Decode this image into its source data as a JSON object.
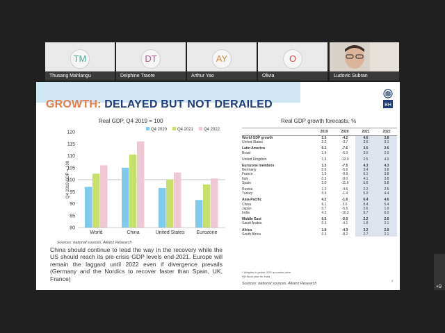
{
  "participants": [
    {
      "initials": "TM",
      "name": "Thusang Mahlangu",
      "color": "#4aa89a"
    },
    {
      "initials": "DT",
      "name": "Delphine Traore",
      "color": "#b0558f"
    },
    {
      "initials": "AY",
      "name": "Arthur Yao",
      "color": "#d4873a"
    },
    {
      "initials": "O",
      "name": "Olivia",
      "color": "#d0533f"
    }
  ],
  "video_participant": {
    "name": "Ludovic Subran"
  },
  "more_participants": "+9",
  "slide": {
    "title_part1": "GROWTH:",
    "title_part2": "DELAYED BUT NOT DERAILED",
    "logo_text": "BH",
    "body": "China should continue to lead the way in the recovery while the US should reach its pre-crisis GDP levels end-2021. Europe will remain the laggard until 2022 even if divergence prevails (Germany and the Nordics to recover faster than Spain, UK, France)",
    "left_source": "Sources: national sources, Allianz Research",
    "right_source": "Sources: national sources, Allianz Research",
    "footnote1": "* Weights in global GDP at market price",
    "footnote2": "NB fiscal year for India",
    "page_number": "3"
  },
  "chart_data": {
    "type": "bar",
    "title": "Real GDP, Q4 2019 = 100",
    "ylabel": "Q4 2019 GDP = 100",
    "categories": [
      "World",
      "China",
      "United States",
      "Eurozone"
    ],
    "series": [
      {
        "name": "Q4 2020",
        "values": [
          97,
          105,
          96.5,
          91.5
        ],
        "color": "#7fcbf0"
      },
      {
        "name": "Q4 2021",
        "values": [
          102.5,
          110.5,
          100,
          98
        ],
        "color": "#c6e06a"
      },
      {
        "name": "Q4 2022",
        "values": [
          106,
          116,
          103,
          100.5
        ],
        "color": "#f0c8d4"
      }
    ],
    "ylim": [
      80,
      120
    ],
    "yticks": [
      "80",
      "85",
      "90",
      "95",
      "100",
      "105",
      "110",
      "115",
      "120"
    ],
    "reference_line": 100,
    "grid": false,
    "legend": "top-right"
  },
  "gdp_table": {
    "title": "Real GDP growth forecasts, %",
    "headers": [
      "",
      "2019",
      "2020",
      "2021",
      "2022"
    ],
    "rows": [
      {
        "label": "World GDP growth",
        "v": [
          "2.5",
          "-4.2",
          "4.6",
          "3.8"
        ],
        "bold": true
      },
      {
        "label": "United States",
        "v": [
          "2.2",
          "-3.7",
          "3.6",
          "3.1"
        ]
      },
      {
        "label": "",
        "v": [
          "",
          "",
          "",
          ""
        ],
        "gap": true
      },
      {
        "label": "Latin America",
        "v": [
          "0.2",
          "-7.6",
          "3.5",
          "2.5"
        ],
        "bold": true
      },
      {
        "label": "Brazil",
        "v": [
          "1.4",
          "-5.0",
          "3.0",
          "2.0"
        ]
      },
      {
        "label": "",
        "v": [
          "",
          "",
          "",
          ""
        ],
        "gap": true
      },
      {
        "label": "United Kingdom",
        "v": [
          "1.3",
          "-12.0",
          "2.5",
          "4.9"
        ]
      },
      {
        "label": "",
        "v": [
          "",
          "",
          "",
          ""
        ],
        "gap": true
      },
      {
        "label": "Eurozone members",
        "v": [
          "1.3",
          "-7.5",
          "4.3",
          "4.3"
        ],
        "bold": true
      },
      {
        "label": "Germany",
        "v": [
          "0.6",
          "-5.6",
          "3.4",
          "3.8"
        ]
      },
      {
        "label": "France",
        "v": [
          "1.5",
          "-9.9",
          "6.1",
          "3.8"
        ]
      },
      {
        "label": "Italy",
        "v": [
          "0.3",
          "-9.0",
          "4.1",
          "3.8"
        ]
      },
      {
        "label": "Spain",
        "v": [
          "2.0",
          "-11.6",
          "5.6",
          "5.8"
        ]
      },
      {
        "label": "",
        "v": [
          "",
          "",
          "",
          ""
        ],
        "gap": true
      },
      {
        "label": "Russia",
        "v": [
          "1.3",
          "-4.5",
          "2.2",
          "2.5"
        ]
      },
      {
        "label": "Turkey",
        "v": [
          "0.9",
          "-1.4",
          "5.0",
          "4.4"
        ]
      },
      {
        "label": "",
        "v": [
          "",
          "",
          "",
          ""
        ],
        "gap": true
      },
      {
        "label": "Asia-Pacific",
        "v": [
          "4.2",
          "-1.6",
          "6.4",
          "4.6"
        ],
        "bold": true
      },
      {
        "label": "China",
        "v": [
          "6.1",
          "2.0",
          "8.4",
          "5.4"
        ]
      },
      {
        "label": "Japan",
        "v": [
          "0.7",
          "-5.5",
          "2.6",
          "1.9"
        ]
      },
      {
        "label": "India",
        "v": [
          "4.2",
          "-10.2",
          "9.7",
          "6.0"
        ]
      },
      {
        "label": "",
        "v": [
          "",
          "",
          "",
          ""
        ],
        "gap": true
      },
      {
        "label": "Middle East",
        "v": [
          "0.5",
          "-5.0",
          "2.2",
          "2.0"
        ],
        "bold": true
      },
      {
        "label": "Saudi Arabia",
        "v": [
          "0.3",
          "-4.1",
          "1.8",
          "2.1"
        ]
      },
      {
        "label": "",
        "v": [
          "",
          "",
          "",
          ""
        ],
        "gap": true
      },
      {
        "label": "Africa",
        "v": [
          "1.9",
          "-4.3",
          "3.2",
          "2.9"
        ],
        "bold": true
      },
      {
        "label": "South Africa",
        "v": [
          "0.3",
          "-8.2",
          "2.7",
          "2.1"
        ]
      }
    ]
  }
}
